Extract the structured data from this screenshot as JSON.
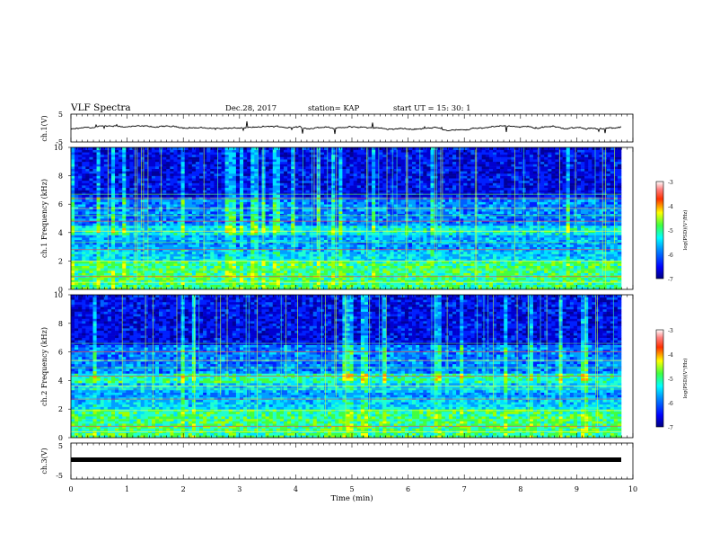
{
  "header": {
    "title": "VLF Spectra",
    "date": "Dec.28, 2017",
    "station": "station= KAP",
    "start": "start  UT =  15: 30: 1"
  },
  "chart_data": [
    {
      "type": "line",
      "ylabel": "ch.1(V)",
      "xlim": [
        0,
        10
      ],
      "ylim": [
        -5,
        5
      ],
      "yticks": [
        "5",
        "-5"
      ],
      "description_values": "waveform amplitude roughly between -1.5 and 0.5 V with spikes"
    },
    {
      "type": "heatmap",
      "ylabel": "ch.1 Frequency (kHz)",
      "xlim": [
        0,
        10
      ],
      "ylim": [
        0,
        10
      ],
      "yticks": [
        "0",
        "2",
        "4",
        "6",
        "8",
        "10"
      ],
      "colorbar": {
        "label": "log(PSD)(V²/Hz)",
        "range": [
          -7,
          -3
        ],
        "ticks": [
          "-3",
          "-4",
          "-5",
          "-6",
          "-7"
        ]
      }
    },
    {
      "type": "heatmap",
      "ylabel": "ch.2 Frequency (kHz)",
      "xlim": [
        0,
        10
      ],
      "ylim": [
        0,
        10
      ],
      "yticks": [
        "0",
        "2",
        "4",
        "6",
        "8",
        "10"
      ],
      "colorbar": {
        "label": "log(PSD)(V²/Hz)",
        "range": [
          -7,
          -3
        ],
        "ticks": [
          "-3",
          "-4",
          "-5",
          "-6",
          "-7"
        ]
      }
    },
    {
      "type": "line",
      "ylabel": "ch.3(V)",
      "xlim": [
        0,
        10
      ],
      "ylim": [
        -5,
        5
      ],
      "yticks": [
        "5",
        "-5"
      ],
      "series": [
        {
          "x": [
            0,
            9.8
          ],
          "y": [
            -1.2,
            -1.2
          ]
        }
      ]
    }
  ],
  "xaxis": {
    "label": "Time  (min)",
    "ticks": [
      "0",
      "1",
      "2",
      "3",
      "4",
      "5",
      "6",
      "7",
      "8",
      "9",
      "10"
    ]
  },
  "colors": {
    "deep_blue": "#00007f",
    "blue": "#0050ff",
    "cyan": "#00e0ff",
    "green": "#40ff40",
    "yellow": "#ffff00",
    "red": "#ff2020",
    "line": "#000000"
  }
}
